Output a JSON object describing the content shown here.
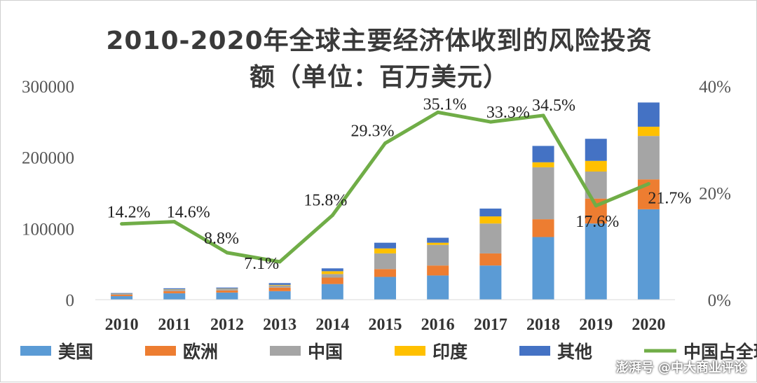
{
  "chart_data": {
    "type": "bar",
    "stacked": true,
    "title_line1": "2010-2020年全球主要经济体收到的风险投资",
    "title_line2": "额（单位：百万美元）",
    "categories": [
      "2010",
      "2011",
      "2012",
      "2013",
      "2014",
      "2015",
      "2016",
      "2017",
      "2018",
      "2019",
      "2020"
    ],
    "series": [
      {
        "name": "美国",
        "color": "#5b9bd5",
        "values": [
          5000,
          9000,
          10000,
          12000,
          22000,
          32000,
          34000,
          48000,
          88000,
          107000,
          127000
        ]
      },
      {
        "name": "欧洲",
        "color": "#ed7d31",
        "values": [
          2000,
          3000,
          3000,
          5000,
          9000,
          11000,
          14000,
          17000,
          25000,
          35000,
          42000
        ]
      },
      {
        "name": "中国",
        "color": "#a5a5a5",
        "values": [
          1000,
          2000,
          2000,
          3000,
          5000,
          22000,
          29000,
          42000,
          73000,
          38000,
          61000
        ]
      },
      {
        "name": "印度",
        "color": "#ffc000",
        "values": [
          300,
          500,
          500,
          800,
          4000,
          7000,
          3000,
          10000,
          7000,
          15000,
          13000
        ]
      },
      {
        "name": "其他",
        "color": "#4472c4",
        "values": [
          1000,
          1500,
          1500,
          2500,
          4000,
          8000,
          7000,
          11000,
          23000,
          31000,
          34000
        ]
      }
    ],
    "line": {
      "name": "中国占全球的比重",
      "color": "#70ad47",
      "values": [
        14.2,
        14.6,
        8.8,
        7.1,
        15.8,
        29.3,
        35.1,
        33.3,
        34.5,
        17.6,
        21.7
      ],
      "labels": [
        "14.2%",
        "14.6%",
        "8.8%",
        "7.1%",
        "15.8%",
        "29.3%",
        "35.1%",
        "33.3%",
        "34.5%",
        "17.6%",
        "21.7%"
      ]
    },
    "y_left": {
      "ylim": [
        0,
        300000
      ],
      "ticks": [
        "0",
        "100000",
        "200000",
        "300000"
      ]
    },
    "y_right": {
      "ylim": [
        0,
        40
      ],
      "ticks": [
        "0%",
        "20%",
        "40%"
      ]
    },
    "legend_position": "bottom",
    "grid": false
  },
  "watermark": {
    "text": "澎湃号 @中大商业评论"
  }
}
